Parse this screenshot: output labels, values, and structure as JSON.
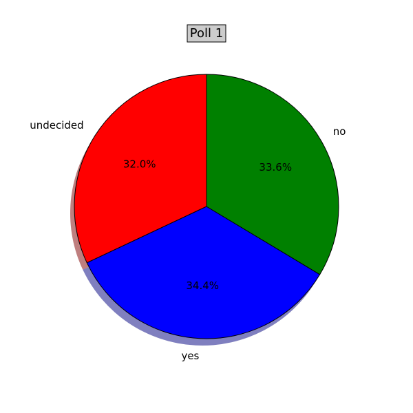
{
  "chart_data": {
    "type": "pie",
    "title": "Poll 1",
    "categories": [
      "undecided",
      "yes",
      "no"
    ],
    "values": [
      32.0,
      34.4,
      33.6
    ],
    "percent_labels": [
      "32.0%",
      "34.4%",
      "33.6%"
    ],
    "colors": [
      "#ff0000",
      "#0000ff",
      "#008000"
    ],
    "start_angle_deg": 90,
    "direction": "counterclockwise",
    "shadow": true,
    "title_box": true,
    "title_box_color": "#cccccc",
    "legend": "none"
  }
}
